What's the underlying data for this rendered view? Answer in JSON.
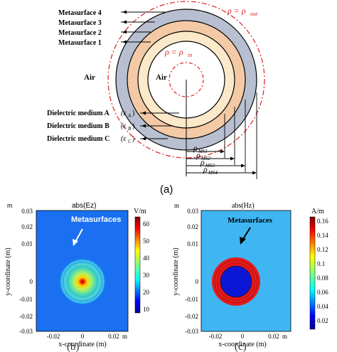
{
  "figure_a": {
    "metasurface_labels": [
      "Metasurface 4",
      "Metasurface 3",
      "Metasurface 2",
      "Metasurface 1"
    ],
    "air_outer": "Air",
    "air_inner": "Air",
    "dielectric_labels": [
      {
        "name": "Dielectric medium A",
        "eps": "(ε",
        "sub": "A",
        "close": ")"
      },
      {
        "name": "Dielectric medium B",
        "eps": "(ε",
        "sub": "B",
        "close": ")"
      },
      {
        "name": "Dielectric medium C",
        "eps": "(ε",
        "sub": "C",
        "close": ")"
      }
    ],
    "rho_out": {
      "lhs": "ρ = ρ",
      "sub": "out"
    },
    "rho_in": {
      "lhs": "ρ = ρ",
      "sub": "in"
    },
    "rho_ms": [
      {
        "main": "ρ",
        "sub": "MS1"
      },
      {
        "main": "ρ",
        "sub": "MS2"
      },
      {
        "main": "ρ",
        "sub": "MS3"
      },
      {
        "main": "ρ",
        "sub": "MS4"
      }
    ],
    "caption": "(a)",
    "colors": {
      "ring_outer": "#b7bfd0",
      "ring_mid": "#f4c9a6",
      "ring_inner": "#fbe9c9",
      "boundary": "#e02020"
    }
  },
  "figure_b": {
    "title": "abs(Ez)",
    "unit": "V/m",
    "annotation": "Metasurfaces",
    "ylabel": "y-coordinate (m)",
    "xlabel": "x-coordinate (m)",
    "y_unit": "m",
    "x_unit": "m",
    "yticks": [
      "0.03",
      "0.02",
      "0.01",
      "0",
      "-0.01",
      "-0.02",
      "-0.03"
    ],
    "xticks": [
      "-0.02",
      "0",
      "0.02"
    ],
    "colorbar_ticks": [
      "60",
      "50",
      "40",
      "30",
      "20",
      "10"
    ],
    "caption": "(b)"
  },
  "figure_c": {
    "title": "abs(Hz)",
    "unit": "A/m",
    "annotation": "Metasurfaces",
    "ylabel": "y-coordinate (m)",
    "xlabel": "x-coordinate (m)",
    "y_unit": "m",
    "x_unit": "m",
    "yticks": [
      "0.03",
      "0.02",
      "0.01",
      "0",
      "-0.01",
      "-0.02",
      "-0.03"
    ],
    "xticks": [
      "-0.02",
      "0",
      "0.02"
    ],
    "colorbar_ticks": [
      "0.16",
      "0.14",
      "0.12",
      "0.1",
      "0.08",
      "0.06",
      "0.04",
      "0.02"
    ],
    "caption": "(c)"
  }
}
